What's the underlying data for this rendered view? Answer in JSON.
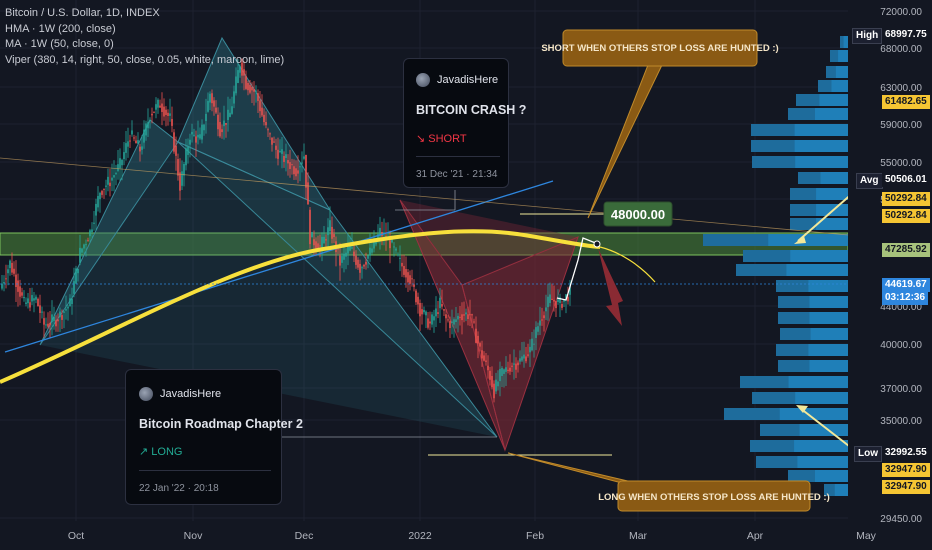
{
  "legend": {
    "title": "Bitcoin / U.S. Dollar, 1D, INDEX",
    "hma": "HMA · 1W (200, close)",
    "ma": "MA · 1W (50, close, 0)",
    "viper": "Viper (380, 14, right, 50, close, 0.05, white, maroon, lime)"
  },
  "cards": [
    {
      "user": "JavadisHere",
      "title": "BITCOIN CRASH ?",
      "direction": "↘ SHORT",
      "direction_color": "#f23645",
      "date": "31 Dec '21 · 21:34"
    },
    {
      "user": "JavadisHere",
      "title": "Bitcoin Roadmap Chapter 2",
      "direction": "↗ LONG",
      "direction_color": "#22ab94",
      "date": "22 Jan '22 · 20:18"
    }
  ],
  "annotations": {
    "short_callout": "SHORT WHEN OTHERS STOP LOSS ARE HUNTED :)",
    "long_callout": "LONG WHEN OTHERS STOP LOSS ARE HUNTED :)",
    "target_label": "48000.00"
  },
  "price_labels": {
    "high_tag": "High",
    "high": "68997.75",
    "p1": "61482.65",
    "avg_tag": "Avg",
    "avg": "50506.01",
    "p2": "50292.84",
    "p3": "50292.84",
    "p4": "47285.92",
    "current": "44619.67",
    "countdown": "03:12:36",
    "low_tag": "Low",
    "low": "32992.55",
    "p5": "32947.90",
    "p6": "32947.90"
  },
  "colors": {
    "background": "#131722",
    "bull": "#26a69a",
    "bear": "#ef5350",
    "hma": "#f7e03c",
    "ma": "#2e86de",
    "zone": "#4c8a3a",
    "bullish_pattern": "#2a6c7c",
    "bearish_pattern": "#7a2836",
    "callout": "#8a5a14"
  },
  "chart_data": {
    "type": "candlestick",
    "symbol": "Bitcoin / U.S. Dollar",
    "interval": "1D",
    "y_ticks": [
      72000,
      68000,
      63000,
      59000,
      55000,
      51000,
      44000,
      40000,
      37000,
      35000,
      29450
    ],
    "y_tick_labels": [
      "72000.00",
      "68000.00",
      "63000.00",
      "59000.00",
      "55000.00",
      "51000.00",
      "44000.00",
      "40000.00",
      "37000.00",
      "35000.00",
      "29450.00"
    ],
    "x_labels": [
      "Oct",
      "Nov",
      "Dec",
      "2022",
      "Feb",
      "Mar",
      "Apr",
      "May"
    ],
    "last_price": 44619.67,
    "key_zone": [
      46500,
      48400
    ],
    "target": 48000,
    "anchors": [
      [
        0,
        45000
      ],
      [
        5,
        47500
      ],
      [
        12,
        43500
      ],
      [
        18,
        44000
      ],
      [
        22,
        41500
      ],
      [
        28,
        42000
      ],
      [
        35,
        43500
      ],
      [
        40,
        48500
      ],
      [
        45,
        50500
      ],
      [
        50,
        54500
      ],
      [
        55,
        55500
      ],
      [
        60,
        57000
      ],
      [
        65,
        60000
      ],
      [
        70,
        58500
      ],
      [
        75,
        62000
      ],
      [
        80,
        63000
      ],
      [
        85,
        61500
      ],
      [
        90,
        55000
      ],
      [
        95,
        60000
      ],
      [
        100,
        59500
      ],
      [
        105,
        64000
      ],
      [
        110,
        60500
      ],
      [
        115,
        62000
      ],
      [
        120,
        67000
      ],
      [
        123,
        65000
      ],
      [
        128,
        64000
      ],
      [
        133,
        60500
      ],
      [
        138,
        58500
      ],
      [
        143,
        57500
      ],
      [
        148,
        56500
      ],
      [
        152,
        58000
      ],
      [
        155,
        50000
      ],
      [
        160,
        49000
      ],
      [
        165,
        51000
      ],
      [
        170,
        47500
      ],
      [
        175,
        49000
      ],
      [
        180,
        47000
      ],
      [
        185,
        48500
      ],
      [
        190,
        50500
      ],
      [
        195,
        49500
      ],
      [
        200,
        47500
      ],
      [
        205,
        46000
      ],
      [
        210,
        43000
      ],
      [
        215,
        41500
      ],
      [
        220,
        43500
      ],
      [
        223,
        42000
      ],
      [
        226,
        41500
      ],
      [
        230,
        42500
      ],
      [
        235,
        42500
      ],
      [
        240,
        39000
      ],
      [
        245,
        36500
      ],
      [
        247,
        35000
      ],
      [
        250,
        36500
      ],
      [
        255,
        37500
      ],
      [
        260,
        38000
      ],
      [
        265,
        39000
      ],
      [
        270,
        42000
      ],
      [
        275,
        44000
      ],
      [
        280,
        43500
      ],
      [
        285,
        44619.67
      ]
    ]
  }
}
